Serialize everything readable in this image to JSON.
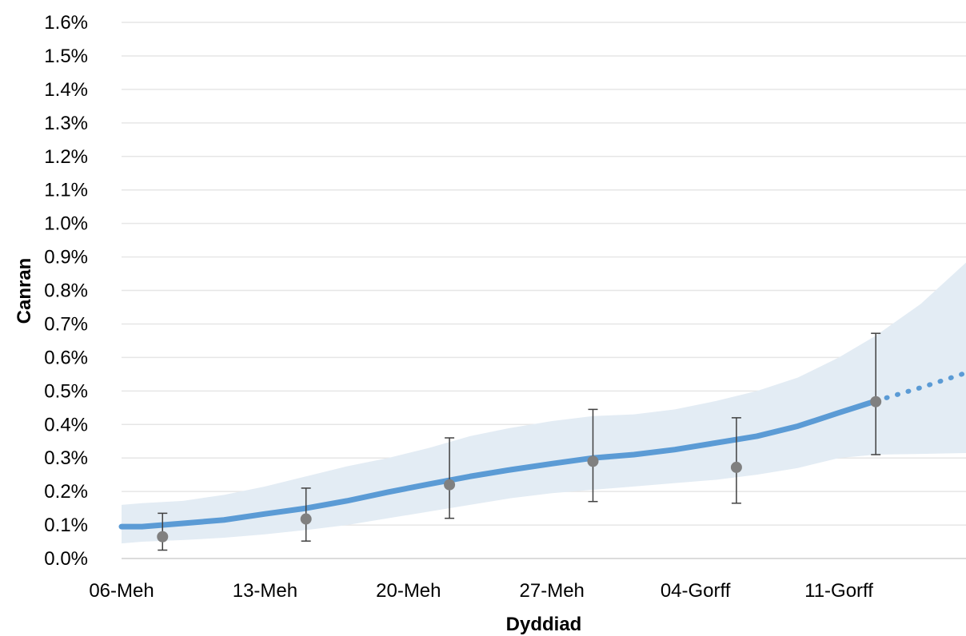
{
  "chart_data": {
    "type": "line",
    "title": "",
    "xlabel": "Dyddiad",
    "ylabel": "Canran",
    "x_ticks": [
      {
        "label": "06-Meh",
        "day": 0
      },
      {
        "label": "13-Meh",
        "day": 7
      },
      {
        "label": "20-Meh",
        "day": 14
      },
      {
        "label": "27-Meh",
        "day": 21
      },
      {
        "label": "04-Gorff",
        "day": 28
      },
      {
        "label": "11-Gorff",
        "day": 35
      }
    ],
    "xlim": [
      0,
      41.5
    ],
    "ylim": [
      0,
      1.6
    ],
    "y_ticks": [
      {
        "value": 0.0,
        "label": "0.0%"
      },
      {
        "value": 0.1,
        "label": "0.1%"
      },
      {
        "value": 0.2,
        "label": "0.2%"
      },
      {
        "value": 0.3,
        "label": "0.3%"
      },
      {
        "value": 0.4,
        "label": "0.4%"
      },
      {
        "value": 0.5,
        "label": "0.5%"
      },
      {
        "value": 0.6,
        "label": "0.6%"
      },
      {
        "value": 0.7,
        "label": "0.7%"
      },
      {
        "value": 0.8,
        "label": "0.8%"
      },
      {
        "value": 0.9,
        "label": "0.9%"
      },
      {
        "value": 1.0,
        "label": "1.0%"
      },
      {
        "value": 1.1,
        "label": "1.1%"
      },
      {
        "value": 1.2,
        "label": "1.2%"
      },
      {
        "value": 1.3,
        "label": "1.3%"
      },
      {
        "value": 1.4,
        "label": "1.4%"
      },
      {
        "value": 1.5,
        "label": "1.5%"
      },
      {
        "value": 1.6,
        "label": "1.6%"
      }
    ],
    "grid": true,
    "modelled_estimate": [
      {
        "day": 0,
        "value": 0.095,
        "lower": 0.045,
        "upper": 0.16
      },
      {
        "day": 1,
        "value": 0.095,
        "lower": 0.05,
        "upper": 0.165
      },
      {
        "day": 3,
        "value": 0.105,
        "lower": 0.055,
        "upper": 0.172
      },
      {
        "day": 5,
        "value": 0.115,
        "lower": 0.062,
        "upper": 0.19
      },
      {
        "day": 7,
        "value": 0.133,
        "lower": 0.072,
        "upper": 0.215
      },
      {
        "day": 9,
        "value": 0.15,
        "lower": 0.085,
        "upper": 0.245
      },
      {
        "day": 11,
        "value": 0.172,
        "lower": 0.1,
        "upper": 0.275
      },
      {
        "day": 13,
        "value": 0.198,
        "lower": 0.12,
        "upper": 0.3
      },
      {
        "day": 15,
        "value": 0.222,
        "lower": 0.14,
        "upper": 0.33
      },
      {
        "day": 17,
        "value": 0.245,
        "lower": 0.16,
        "upper": 0.365
      },
      {
        "day": 19,
        "value": 0.265,
        "lower": 0.18,
        "upper": 0.39
      },
      {
        "day": 21,
        "value": 0.283,
        "lower": 0.195,
        "upper": 0.41
      },
      {
        "day": 23,
        "value": 0.3,
        "lower": 0.205,
        "upper": 0.425
      },
      {
        "day": 25,
        "value": 0.31,
        "lower": 0.215,
        "upper": 0.43
      },
      {
        "day": 27,
        "value": 0.325,
        "lower": 0.225,
        "upper": 0.445
      },
      {
        "day": 29,
        "value": 0.345,
        "lower": 0.235,
        "upper": 0.47
      },
      {
        "day": 31,
        "value": 0.365,
        "lower": 0.25,
        "upper": 0.5
      },
      {
        "day": 33,
        "value": 0.395,
        "lower": 0.27,
        "upper": 0.54
      },
      {
        "day": 35,
        "value": 0.435,
        "lower": 0.3,
        "upper": 0.6
      },
      {
        "day": 36.8,
        "value": 0.47,
        "lower": 0.31,
        "upper": 0.665
      },
      {
        "day": 39,
        "value": 0.51,
        "lower": 0.312,
        "upper": 0.76
      },
      {
        "day": 41.5,
        "value": 0.56,
        "lower": 0.315,
        "upper": 0.9
      }
    ],
    "projection_start_day": 36.8,
    "official_estimates": [
      {
        "day": 2,
        "value": 0.065,
        "lower": 0.025,
        "upper": 0.135
      },
      {
        "day": 9,
        "value": 0.118,
        "lower": 0.052,
        "upper": 0.21
      },
      {
        "day": 16,
        "value": 0.22,
        "lower": 0.12,
        "upper": 0.36
      },
      {
        "day": 23,
        "value": 0.29,
        "lower": 0.17,
        "upper": 0.445
      },
      {
        "day": 30,
        "value": 0.272,
        "lower": 0.165,
        "upper": 0.42
      },
      {
        "day": 36.8,
        "value": 0.468,
        "lower": 0.31,
        "upper": 0.672
      }
    ],
    "colors": {
      "line": "#5B9BD5",
      "band": "#E3ECF4",
      "points": "#808080",
      "error_bars": "#404040",
      "grid": "#E6E6E6"
    }
  }
}
